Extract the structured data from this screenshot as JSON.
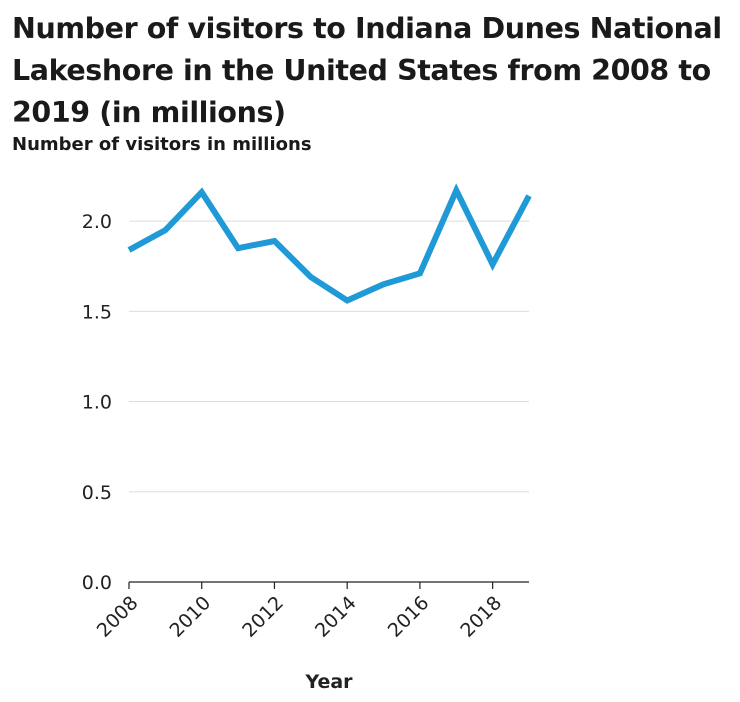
{
  "chart_data": {
    "type": "line",
    "title": "Number of visitors to Indiana Dunes National Lakeshore in the United States from 2008 to 2019 (in millions)",
    "xlabel": "Year",
    "ylabel": "Number of visitors in millions",
    "x": [
      2008,
      2009,
      2010,
      2011,
      2012,
      2013,
      2014,
      2015,
      2016,
      2017,
      2018,
      2019
    ],
    "series": [
      {
        "values": [
          1.84,
          1.95,
          2.16,
          1.85,
          1.89,
          1.69,
          1.56,
          1.65,
          1.71,
          2.17,
          1.76,
          2.14
        ]
      }
    ],
    "xticks": [
      "2008",
      "2010",
      "2012",
      "2014",
      "2016",
      "2018"
    ],
    "yticks": [
      "0.0",
      "0.5",
      "1.0",
      "1.5",
      "2.0"
    ],
    "ylim": [
      0,
      2.25
    ],
    "xlim": [
      2008,
      2019
    ],
    "grid": "horizontal",
    "color": "#1f9ad6"
  }
}
